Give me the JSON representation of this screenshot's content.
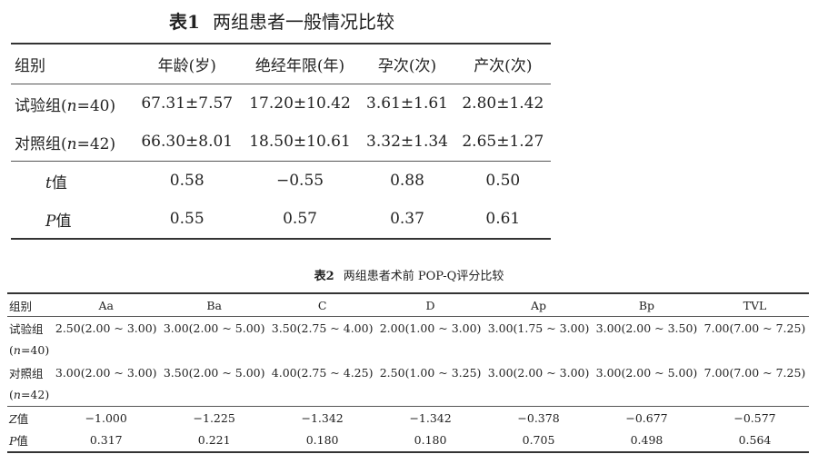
{
  "table1": {
    "label": "表1",
    "title": "两组患者一般情况比较",
    "headers": [
      "组别",
      "年龄(岁)",
      "绝经年限(年)",
      "孕次(次)",
      "产次(次)"
    ],
    "rows": [
      {
        "group_prefix": "试验组(",
        "n_symbol": "n",
        "group_suffix": "=40)",
        "values": [
          "67.31±7.57",
          "17.20±10.42",
          "3.61±1.61",
          "2.80±1.42"
        ]
      },
      {
        "group_prefix": "对照组(",
        "n_symbol": "n",
        "group_suffix": "=42)",
        "values": [
          "66.30±8.01",
          "18.50±10.61",
          "3.32±1.34",
          "2.65±1.27"
        ]
      }
    ],
    "stats": [
      {
        "symbol": "t",
        "suffix": "值",
        "values": [
          "0.58",
          "−0.55",
          "0.88",
          "0.50"
        ]
      },
      {
        "symbol": "P",
        "suffix": "值",
        "values": [
          "0.55",
          "0.57",
          "0.37",
          "0.61"
        ]
      }
    ]
  },
  "table2": {
    "label": "表2",
    "title": "两组患者术前 POP-Q评分比较",
    "headers": [
      "组别",
      "Aa",
      "Ba",
      "C",
      "D",
      "Ap",
      "Bp",
      "TVL"
    ],
    "rows": [
      {
        "group": "试验组",
        "n_prefix": "(",
        "n_symbol": "n",
        "n_suffix": "=40)",
        "values": [
          "2.50(2.00 ~ 3.00)",
          "3.00(2.00 ~ 5.00)",
          "3.50(2.75 ~ 4.00)",
          "2.00(1.00 ~ 3.00)",
          "3.00(1.75 ~ 3.00)",
          "3.00(2.00 ~ 3.50)",
          "7.00(7.00 ~ 7.25)"
        ]
      },
      {
        "group": "对照组",
        "n_prefix": "(",
        "n_symbol": "n",
        "n_suffix": "=42)",
        "values": [
          "3.00(2.00 ~ 3.00)",
          "3.50(2.00 ~ 5.00)",
          "4.00(2.75 ~ 4.25)",
          "2.50(1.00 ~ 3.25)",
          "3.00(2.00 ~ 3.00)",
          "3.00(2.00 ~ 5.00)",
          "7.00(7.00 ~ 7.25)"
        ]
      }
    ],
    "stats": [
      {
        "symbol": "Z",
        "suffix": "值",
        "values": [
          "−1.000",
          "−1.225",
          "−1.342",
          "−1.342",
          "−0.378",
          "−0.677",
          "−0.577"
        ]
      },
      {
        "symbol": "P",
        "suffix": "值",
        "values": [
          "0.317",
          "0.221",
          "0.180",
          "0.180",
          "0.705",
          "0.498",
          "0.564"
        ]
      }
    ]
  }
}
